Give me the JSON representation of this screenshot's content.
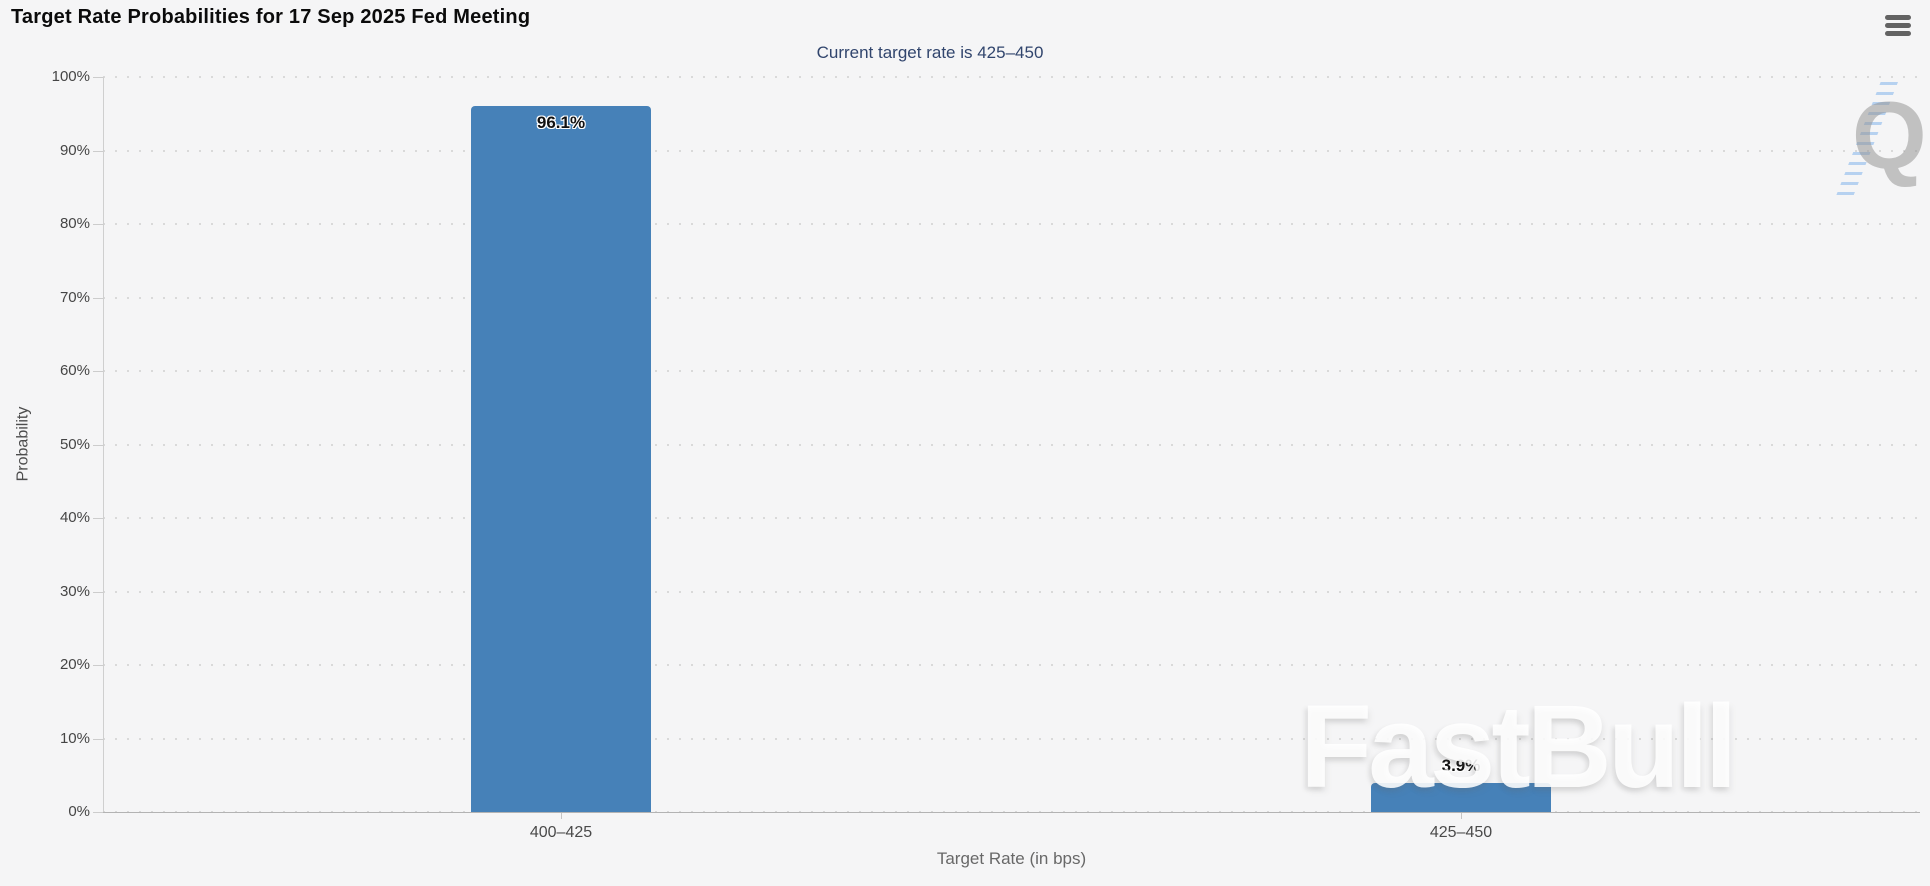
{
  "chart": {
    "context_menu": {
      "icon": "hamburger-menu-icon"
    },
    "watermarks": {
      "big_text": "FastBull",
      "logo_letter": "Q"
    },
    "colors": {
      "background": "#f5f5f6",
      "bar": "#4681b8",
      "subtitle_text": "#31456d",
      "grid_dot": "#d9d9d9",
      "axis_line": "#b3b3b3"
    }
  },
  "chart_data": {
    "type": "bar",
    "title": "Target Rate Probabilities for 17 Sep 2025 Fed Meeting",
    "subtitle": "Current target rate is 425–450",
    "categories": [
      "400–425",
      "425–450"
    ],
    "values": [
      96.1,
      3.9
    ],
    "value_labels": [
      "96.1%",
      "3.9%"
    ],
    "xlabel": "Target Rate (in bps)",
    "ylabel": "Probability",
    "ylim": [
      0,
      100
    ],
    "ytick_step": 10,
    "ytick_labels": [
      "0%",
      "10%",
      "20%",
      "30%",
      "40%",
      "50%",
      "60%",
      "70%",
      "80%",
      "90%",
      "100%"
    ],
    "grid": "dotted-horizontal",
    "legend": "none",
    "bar_color": "#4681b8"
  }
}
